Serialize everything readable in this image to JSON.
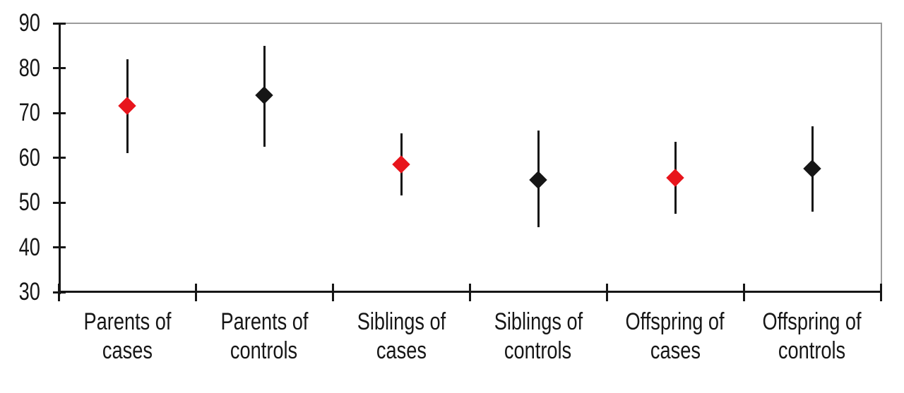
{
  "chart_data": {
    "type": "scatter",
    "subtype": "point-estimates-with-error-bars",
    "title": "",
    "xlabel": "",
    "ylabel": "",
    "ylim": [
      30,
      90
    ],
    "yticks": [
      90,
      80,
      70,
      60,
      50,
      40,
      30
    ],
    "grid": false,
    "legend_position": "none",
    "marker": "diamond",
    "categories": [
      "Parents of cases",
      "Parents of controls",
      "Siblings of cases",
      "Siblings of controls",
      "Offspring of cases",
      "Offspring of controls"
    ],
    "category_label_lines": [
      [
        "Parents of",
        "cases"
      ],
      [
        "Parents of",
        "controls"
      ],
      [
        "Siblings of",
        "cases"
      ],
      [
        "Siblings of",
        "controls"
      ],
      [
        "Offspring of",
        "cases"
      ],
      [
        "Offspring of",
        "controls"
      ]
    ],
    "points": [
      {
        "category": "Parents of cases",
        "series": "cases",
        "value": 71.5,
        "ci_low": 61,
        "ci_high": 82
      },
      {
        "category": "Parents of controls",
        "series": "controls",
        "value": 74,
        "ci_low": 62.5,
        "ci_high": 85
      },
      {
        "category": "Siblings of cases",
        "series": "cases",
        "value": 58.5,
        "ci_low": 51.5,
        "ci_high": 65.5
      },
      {
        "category": "Siblings of controls",
        "series": "controls",
        "value": 55,
        "ci_low": 44.5,
        "ci_high": 66
      },
      {
        "category": "Offspring of cases",
        "series": "cases",
        "value": 55.5,
        "ci_low": 47.5,
        "ci_high": 63.5
      },
      {
        "category": "Offspring of controls",
        "series": "controls",
        "value": 57.5,
        "ci_low": 48,
        "ci_high": 67
      }
    ],
    "colors": {
      "cases_marker": "#e8151c",
      "controls_marker": "#161616",
      "error_bar": "#161616",
      "axis": "#161616",
      "frame": "#9b9b9b",
      "background": "#ffffff",
      "text": "#161616"
    }
  }
}
